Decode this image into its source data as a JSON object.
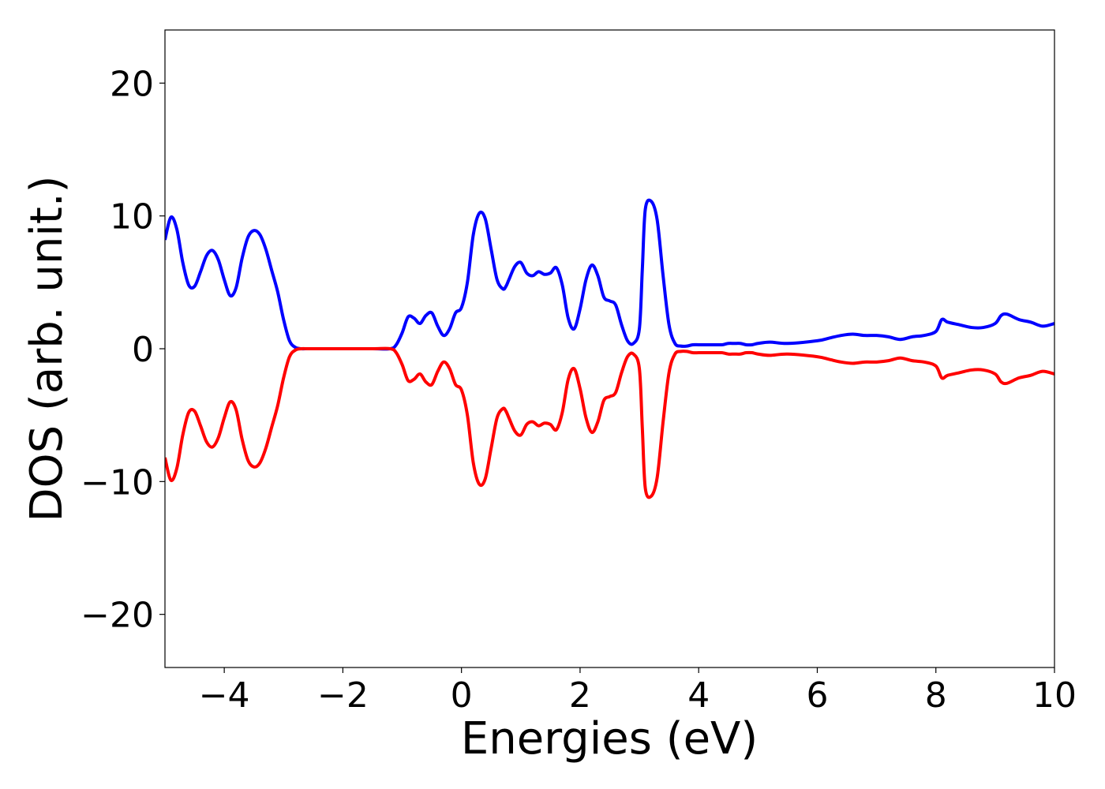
{
  "chart_data": {
    "type": "line",
    "xlabel": "Energies (eV)",
    "ylabel": "DOS (arb. unit.)",
    "xlim": [
      -5,
      10
    ],
    "ylim": [
      -24,
      24
    ],
    "grid": false,
    "x_ticks": [
      -4,
      -2,
      0,
      2,
      4,
      6,
      8,
      10
    ],
    "x_tick_labels": [
      "−4",
      "−2",
      "0",
      "2",
      "4",
      "6",
      "8",
      "10"
    ],
    "y_ticks": [
      -20,
      -10,
      0,
      10,
      20
    ],
    "y_tick_labels": [
      "−20",
      "−10",
      "0",
      "10",
      "20"
    ],
    "series": [
      {
        "color": "#0000ff",
        "x": [
          -5.0,
          -4.9,
          -4.8,
          -4.7,
          -4.6,
          -4.5,
          -4.4,
          -4.3,
          -4.2,
          -4.1,
          -4.0,
          -3.9,
          -3.8,
          -3.7,
          -3.6,
          -3.5,
          -3.4,
          -3.3,
          -3.2,
          -3.1,
          -3.0,
          -2.9,
          -2.8,
          -2.7,
          -2.6,
          -2.5,
          -2.4,
          -2.3,
          -2.2,
          -2.1,
          -2.0,
          -1.5,
          -1.2,
          -1.1,
          -1.0,
          -0.9,
          -0.8,
          -0.7,
          -0.6,
          -0.5,
          -0.4,
          -0.3,
          -0.2,
          -0.1,
          0.0,
          0.1,
          0.2,
          0.3,
          0.4,
          0.5,
          0.6,
          0.7,
          0.75,
          0.8,
          0.9,
          1.0,
          1.1,
          1.2,
          1.3,
          1.4,
          1.5,
          1.6,
          1.7,
          1.8,
          1.9,
          2.0,
          2.1,
          2.2,
          2.3,
          2.4,
          2.5,
          2.6,
          2.7,
          2.8,
          2.9,
          3.0,
          3.05,
          3.1,
          3.2,
          3.3,
          3.4,
          3.5,
          3.6,
          3.7,
          3.8,
          3.9,
          4.0,
          4.1,
          4.2,
          4.3,
          4.35,
          4.4,
          4.5,
          4.6,
          4.7,
          4.8,
          4.9,
          5.0,
          5.2,
          5.5,
          6.0,
          6.2,
          6.4,
          6.6,
          6.8,
          7.0,
          7.2,
          7.4,
          7.6,
          7.8,
          8.0,
          8.1,
          8.2,
          8.4,
          8.6,
          8.8,
          9.0,
          9.1,
          9.2,
          9.4,
          9.6,
          9.8,
          10.0
        ],
        "values": [
          8.2,
          9.9,
          9.0,
          6.5,
          4.8,
          4.7,
          5.8,
          7.0,
          7.4,
          6.7,
          5.2,
          4.0,
          4.6,
          6.8,
          8.4,
          8.9,
          8.6,
          7.5,
          5.9,
          4.3,
          2.2,
          0.6,
          0.1,
          0.0,
          0.0,
          0.0,
          0.0,
          0.0,
          0.0,
          0.0,
          0.0,
          0.0,
          0.0,
          0.3,
          1.2,
          2.4,
          2.3,
          1.9,
          2.5,
          2.7,
          1.7,
          1.0,
          1.5,
          2.7,
          3.1,
          5.0,
          8.6,
          10.2,
          9.8,
          7.5,
          5.2,
          4.5,
          4.7,
          5.2,
          6.2,
          6.5,
          5.7,
          5.5,
          5.8,
          5.6,
          5.7,
          6.1,
          4.8,
          2.3,
          1.5,
          3.0,
          5.2,
          6.3,
          5.5,
          3.9,
          3.6,
          3.3,
          1.8,
          0.6,
          0.4,
          1.5,
          6.0,
          10.5,
          11.1,
          9.7,
          5.5,
          1.8,
          0.4,
          0.2,
          0.2,
          0.3,
          0.3,
          0.3,
          0.3,
          0.3,
          0.3,
          0.3,
          0.4,
          0.4,
          0.4,
          0.3,
          0.3,
          0.4,
          0.5,
          0.4,
          0.6,
          0.8,
          1.0,
          1.1,
          1.0,
          1.0,
          0.9,
          0.7,
          0.9,
          1.0,
          1.3,
          2.2,
          2.0,
          1.8,
          1.6,
          1.6,
          1.9,
          2.5,
          2.6,
          2.2,
          2.0,
          1.7,
          1.9
        ]
      },
      {
        "color": "#ff0000",
        "x": [
          -5.0,
          -4.9,
          -4.8,
          -4.7,
          -4.6,
          -4.5,
          -4.4,
          -4.3,
          -4.2,
          -4.1,
          -4.0,
          -3.9,
          -3.8,
          -3.7,
          -3.6,
          -3.5,
          -3.4,
          -3.3,
          -3.2,
          -3.1,
          -3.0,
          -2.9,
          -2.8,
          -2.7,
          -2.6,
          -2.5,
          -2.4,
          -2.3,
          -2.2,
          -2.1,
          -2.0,
          -1.5,
          -1.2,
          -1.1,
          -1.0,
          -0.9,
          -0.8,
          -0.7,
          -0.6,
          -0.5,
          -0.4,
          -0.3,
          -0.2,
          -0.1,
          0.0,
          0.1,
          0.2,
          0.3,
          0.4,
          0.5,
          0.6,
          0.7,
          0.75,
          0.8,
          0.9,
          1.0,
          1.1,
          1.2,
          1.3,
          1.4,
          1.5,
          1.6,
          1.7,
          1.8,
          1.9,
          2.0,
          2.1,
          2.2,
          2.3,
          2.4,
          2.5,
          2.6,
          2.7,
          2.8,
          2.9,
          3.0,
          3.05,
          3.1,
          3.2,
          3.3,
          3.4,
          3.5,
          3.6,
          3.7,
          3.8,
          3.9,
          4.0,
          4.1,
          4.2,
          4.3,
          4.35,
          4.4,
          4.5,
          4.6,
          4.7,
          4.8,
          4.9,
          5.0,
          5.2,
          5.5,
          6.0,
          6.2,
          6.4,
          6.6,
          6.8,
          7.0,
          7.2,
          7.4,
          7.6,
          7.8,
          8.0,
          8.1,
          8.2,
          8.4,
          8.6,
          8.8,
          9.0,
          9.1,
          9.2,
          9.4,
          9.6,
          9.8,
          10.0
        ],
        "values": [
          -8.2,
          -9.9,
          -9.0,
          -6.5,
          -4.8,
          -4.7,
          -5.8,
          -7.0,
          -7.4,
          -6.7,
          -5.2,
          -4.0,
          -4.6,
          -6.8,
          -8.4,
          -8.9,
          -8.6,
          -7.5,
          -5.9,
          -4.3,
          -2.2,
          -0.6,
          -0.1,
          0.0,
          0.0,
          0.0,
          0.0,
          0.0,
          0.0,
          0.0,
          0.0,
          0.0,
          0.0,
          -0.3,
          -1.2,
          -2.4,
          -2.3,
          -1.9,
          -2.5,
          -2.7,
          -1.7,
          -1.0,
          -1.5,
          -2.7,
          -3.1,
          -5.0,
          -8.6,
          -10.2,
          -9.8,
          -7.5,
          -5.2,
          -4.5,
          -4.7,
          -5.2,
          -6.2,
          -6.5,
          -5.7,
          -5.5,
          -5.8,
          -5.6,
          -5.7,
          -6.1,
          -4.8,
          -2.3,
          -1.5,
          -3.0,
          -5.2,
          -6.3,
          -5.5,
          -3.9,
          -3.6,
          -3.3,
          -1.8,
          -0.6,
          -0.4,
          -1.5,
          -6.0,
          -10.5,
          -11.1,
          -9.7,
          -5.5,
          -1.8,
          -0.4,
          -0.2,
          -0.2,
          -0.3,
          -0.3,
          -0.3,
          -0.3,
          -0.3,
          -0.3,
          -0.3,
          -0.4,
          -0.4,
          -0.4,
          -0.3,
          -0.3,
          -0.4,
          -0.5,
          -0.4,
          -0.6,
          -0.8,
          -1.0,
          -1.1,
          -1.0,
          -1.0,
          -0.9,
          -0.7,
          -0.9,
          -1.0,
          -1.3,
          -2.2,
          -2.0,
          -1.8,
          -1.6,
          -1.6,
          -1.9,
          -2.5,
          -2.6,
          -2.2,
          -2.0,
          -1.7,
          -1.9
        ]
      }
    ]
  }
}
